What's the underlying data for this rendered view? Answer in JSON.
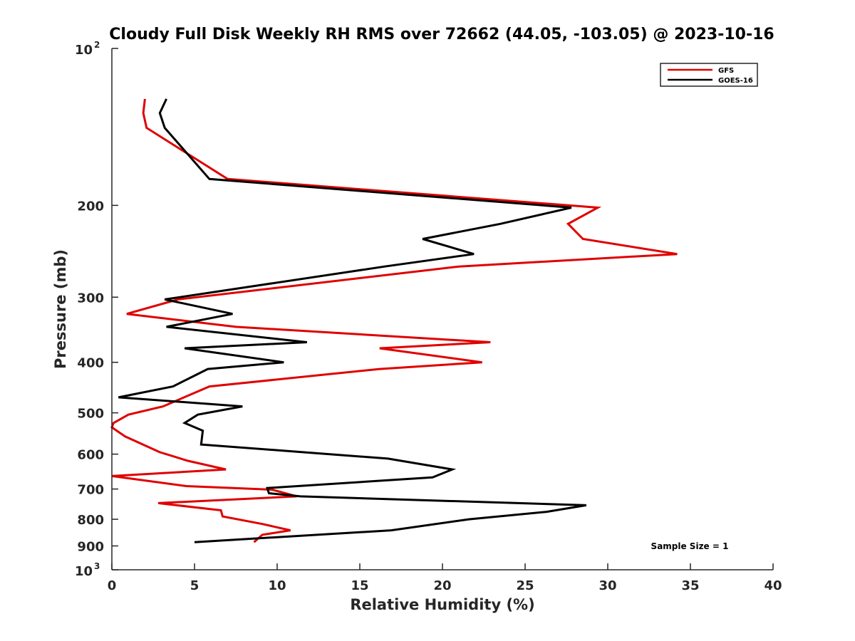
{
  "chart_data": {
    "type": "line",
    "title": "Cloudy Full Disk Weekly RH RMS over 72662 (44.05, -103.05) @ 2023-10-16",
    "xlabel": "Relative Humidity (%)",
    "ylabel": "Pressure (mb)",
    "xlim": [
      0,
      40
    ],
    "ylim": [
      100,
      1000
    ],
    "y_scale": "log",
    "y_reversed": true,
    "x_ticks": [
      "0",
      "5",
      "10",
      "15",
      "20",
      "25",
      "30",
      "35",
      "40"
    ],
    "y_ticks": [
      {
        "value": 100,
        "base": "10",
        "exp": "2"
      },
      {
        "value": 200,
        "label": "200"
      },
      {
        "value": 300,
        "label": "300"
      },
      {
        "value": 400,
        "label": "400"
      },
      {
        "value": 500,
        "label": "500"
      },
      {
        "value": 600,
        "label": "600"
      },
      {
        "value": 700,
        "label": "700"
      },
      {
        "value": 800,
        "label": "800"
      },
      {
        "value": 900,
        "label": "900"
      },
      {
        "value": 1000,
        "base": "10",
        "exp": "3"
      }
    ],
    "grid": false,
    "legend_position": "top-right",
    "annotation": "Sample Size = 1",
    "series": [
      {
        "name": "GFS",
        "color": "#e00000",
        "x": [
          2.0,
          1.9,
          2.1,
          7.0,
          29.4,
          27.6,
          28.5,
          34.2,
          21.0,
          4.0,
          0.9,
          7.5,
          22.9,
          16.2,
          22.4,
          16.2,
          5.9,
          3.1,
          1.0,
          0.1,
          0.0,
          0.8,
          2.9,
          4.6,
          6.9,
          0.0,
          4.5,
          9.7,
          11.2,
          2.8,
          6.6,
          6.7,
          9.1,
          10.8,
          9.1,
          8.6
        ],
        "y": [
          125,
          133,
          142,
          178,
          202,
          217,
          232,
          248,
          262,
          303,
          323,
          342,
          366,
          376,
          400,
          412,
          445,
          486,
          504,
          523,
          533,
          555,
          595,
          618,
          642,
          661,
          691,
          702,
          723,
          745,
          769,
          790,
          817,
          840,
          857,
          885
        ]
      },
      {
        "name": "GOES-16",
        "color": "#000000",
        "x": [
          3.3,
          2.9,
          3.2,
          5.9,
          27.8,
          23.5,
          18.8,
          21.9,
          16.5,
          3.2,
          7.3,
          3.3,
          11.8,
          4.4,
          10.4,
          5.8,
          3.7,
          0.4,
          7.9,
          5.2,
          4.4,
          5.5,
          5.4,
          16.7,
          20.6,
          19.4,
          9.4,
          9.5,
          11.4,
          28.7,
          26.3,
          21.6,
          16.9,
          5.0
        ],
        "y": [
          125,
          133,
          142,
          178,
          202,
          217,
          232,
          248,
          262,
          303,
          323,
          342,
          366,
          376,
          400,
          412,
          445,
          467,
          486,
          504,
          523,
          541,
          575,
          612,
          642,
          665,
          697,
          713,
          723,
          752,
          774,
          800,
          840,
          885
        ]
      }
    ]
  }
}
